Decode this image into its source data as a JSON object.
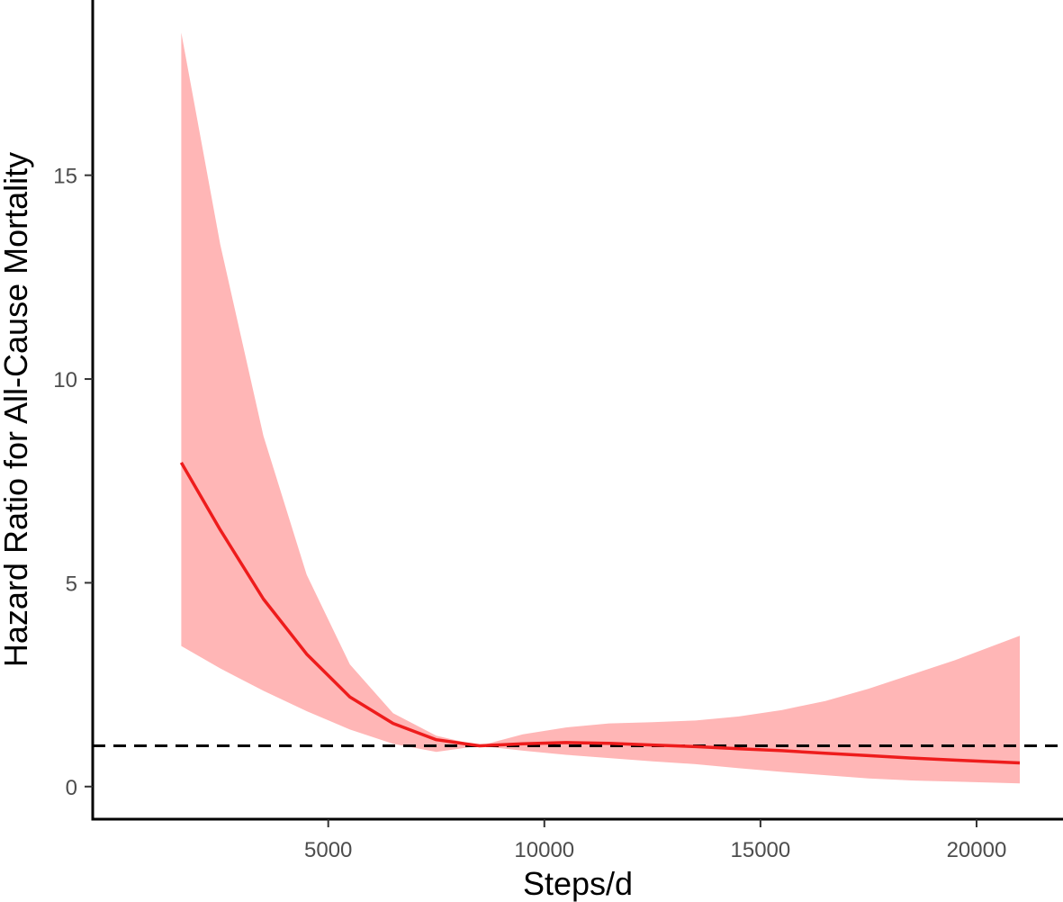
{
  "chart_data": {
    "type": "line",
    "xlabel": "Steps/d",
    "ylabel": "Hazard Ratio for All-Cause Mortality",
    "xlim": [
      -450,
      22000
    ],
    "ylim": [
      -0.8,
      19.3
    ],
    "x_ticks": [
      5000,
      10000,
      15000,
      20000
    ],
    "y_ticks": [
      0,
      5,
      10,
      15
    ],
    "x_tick_labels": [
      "5000",
      "10000",
      "15000",
      "20000"
    ],
    "y_tick_labels": [
      "0",
      "5",
      "10",
      "15"
    ],
    "grid": false,
    "legend": "none",
    "reference_line": {
      "y": 1,
      "style": "dashed",
      "color": "#000000"
    },
    "series": [
      {
        "color": "#ee1c1c",
        "band_color": "#ffb6b6",
        "x": [
          1600,
          2500,
          3500,
          4500,
          5500,
          6500,
          7500,
          8500,
          9500,
          10500,
          11500,
          12500,
          13500,
          14500,
          15500,
          16500,
          17500,
          18500,
          19500,
          21000
        ],
        "y": [
          7.95,
          6.3,
          4.6,
          3.25,
          2.2,
          1.55,
          1.15,
          1.0,
          1.05,
          1.08,
          1.06,
          1.02,
          0.98,
          0.93,
          0.88,
          0.82,
          0.76,
          0.7,
          0.65,
          0.58
        ],
        "upper": [
          18.5,
          13.3,
          8.6,
          5.2,
          3.0,
          1.8,
          1.25,
          1.0,
          1.28,
          1.45,
          1.55,
          1.58,
          1.62,
          1.72,
          1.88,
          2.1,
          2.4,
          2.75,
          3.1,
          3.7
        ],
        "lower": [
          3.45,
          2.9,
          2.35,
          1.85,
          1.4,
          1.05,
          0.85,
          1.0,
          0.88,
          0.78,
          0.7,
          0.62,
          0.55,
          0.45,
          0.36,
          0.28,
          0.2,
          0.15,
          0.12,
          0.08
        ]
      }
    ]
  }
}
